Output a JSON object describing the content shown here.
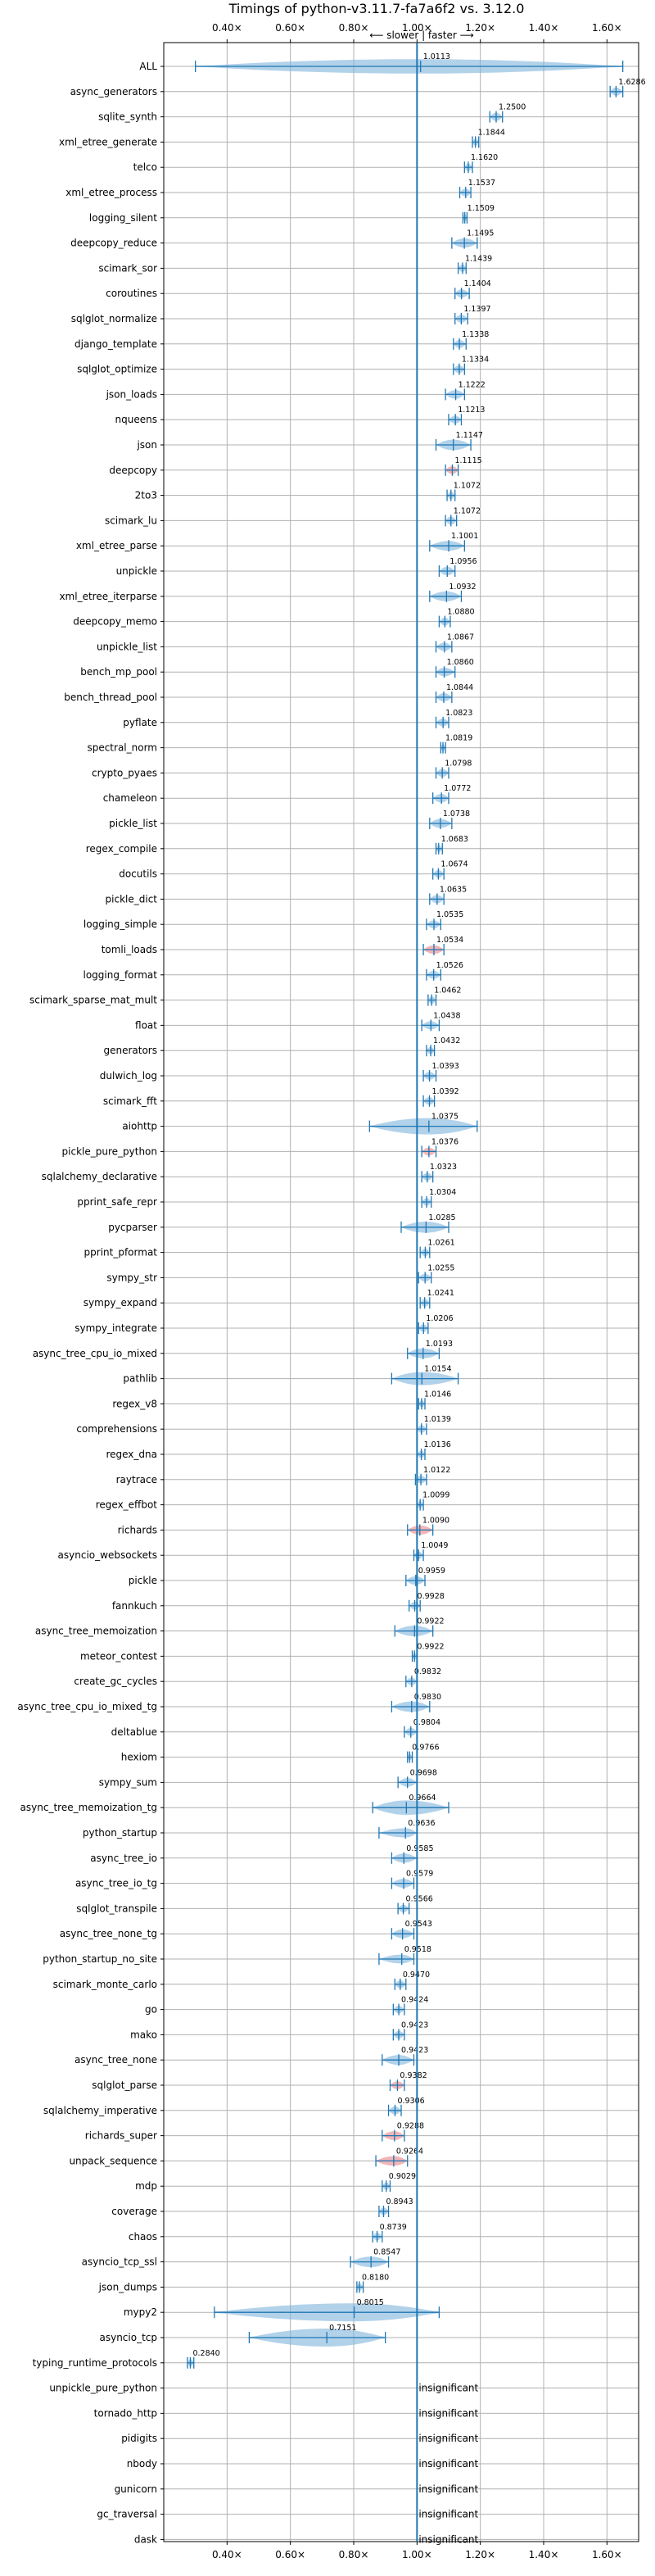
{
  "chart_data": {
    "type": "violin",
    "title": "Timings of python-v3.11.7-fa7a6f2 vs. 3.12.0",
    "direction_label": "⟵ slower | faster ⟶",
    "xlim": [
      0.2,
      1.7
    ],
    "xticks": [
      0.4,
      0.6,
      0.8,
      1.0,
      1.2,
      1.4,
      1.6
    ],
    "xtick_labels": [
      "0.40×",
      "0.60×",
      "0.80×",
      "1.00×",
      "1.20×",
      "1.40×",
      "1.60×"
    ],
    "grid": true,
    "reference_line": 1.0,
    "insignificant_label": "insignificant",
    "benchmarks": [
      {
        "name": "ALL",
        "value": 1.0113,
        "label": "1.0113",
        "lo": 0.3,
        "hi": 1.65,
        "spread": 0.12,
        "flagged": false
      },
      {
        "name": "async_generators",
        "value": 1.6286,
        "label": "1.6286",
        "lo": 1.61,
        "hi": 1.65,
        "spread": 0.025,
        "flagged": false
      },
      {
        "name": "sqlite_synth",
        "value": 1.25,
        "label": "1.2500",
        "lo": 1.23,
        "hi": 1.27,
        "spread": 0.025,
        "flagged": false
      },
      {
        "name": "xml_etree_generate",
        "value": 1.1844,
        "label": "1.1844",
        "lo": 1.175,
        "hi": 1.195,
        "spread": 0.012,
        "flagged": false
      },
      {
        "name": "telco",
        "value": 1.162,
        "label": "1.1620",
        "lo": 1.15,
        "hi": 1.175,
        "spread": 0.015,
        "flagged": false
      },
      {
        "name": "xml_etree_process",
        "value": 1.1537,
        "label": "1.1537",
        "lo": 1.135,
        "hi": 1.17,
        "spread": 0.02,
        "flagged": false
      },
      {
        "name": "logging_silent",
        "value": 1.1509,
        "label": "1.1509",
        "lo": 1.145,
        "hi": 1.158,
        "spread": 0.008,
        "flagged": false
      },
      {
        "name": "deepcopy_reduce",
        "value": 1.1495,
        "label": "1.1495",
        "lo": 1.11,
        "hi": 1.19,
        "spread": 0.04,
        "flagged": false
      },
      {
        "name": "scimark_sor",
        "value": 1.1439,
        "label": "1.1439",
        "lo": 1.13,
        "hi": 1.155,
        "spread": 0.015,
        "flagged": false
      },
      {
        "name": "coroutines",
        "value": 1.1404,
        "label": "1.1404",
        "lo": 1.12,
        "hi": 1.165,
        "spread": 0.025,
        "flagged": false
      },
      {
        "name": "sqlglot_normalize",
        "value": 1.1397,
        "label": "1.1397",
        "lo": 1.12,
        "hi": 1.16,
        "spread": 0.02,
        "flagged": false
      },
      {
        "name": "django_template",
        "value": 1.1338,
        "label": "1.1338",
        "lo": 1.115,
        "hi": 1.155,
        "spread": 0.02,
        "flagged": false
      },
      {
        "name": "sqlglot_optimize",
        "value": 1.1334,
        "label": "1.1334",
        "lo": 1.115,
        "hi": 1.15,
        "spread": 0.02,
        "flagged": false
      },
      {
        "name": "json_loads",
        "value": 1.1222,
        "label": "1.1222",
        "lo": 1.09,
        "hi": 1.15,
        "spread": 0.03,
        "flagged": false
      },
      {
        "name": "nqueens",
        "value": 1.1213,
        "label": "1.1213",
        "lo": 1.1,
        "hi": 1.14,
        "spread": 0.02,
        "flagged": false
      },
      {
        "name": "json",
        "value": 1.1147,
        "label": "1.1147",
        "lo": 1.06,
        "hi": 1.17,
        "spread": 0.06,
        "flagged": false
      },
      {
        "name": "deepcopy",
        "value": 1.1115,
        "label": "1.1115",
        "lo": 1.09,
        "hi": 1.13,
        "spread": 0.02,
        "flagged": true
      },
      {
        "name": "2to3",
        "value": 1.1072,
        "label": "1.1072",
        "lo": 1.095,
        "hi": 1.12,
        "spread": 0.015,
        "flagged": false
      },
      {
        "name": "scimark_lu",
        "value": 1.1072,
        "label": "1.1072",
        "lo": 1.09,
        "hi": 1.125,
        "spread": 0.02,
        "flagged": false
      },
      {
        "name": "xml_etree_parse",
        "value": 1.1001,
        "label": "1.1001",
        "lo": 1.04,
        "hi": 1.15,
        "spread": 0.05,
        "flagged": false
      },
      {
        "name": "unpickle",
        "value": 1.0956,
        "label": "1.0956",
        "lo": 1.07,
        "hi": 1.12,
        "spread": 0.03,
        "flagged": false
      },
      {
        "name": "xml_etree_iterparse",
        "value": 1.0932,
        "label": "1.0932",
        "lo": 1.04,
        "hi": 1.14,
        "spread": 0.05,
        "flagged": false
      },
      {
        "name": "deepcopy_memo",
        "value": 1.088,
        "label": "1.0880",
        "lo": 1.07,
        "hi": 1.105,
        "spread": 0.02,
        "flagged": false
      },
      {
        "name": "unpickle_list",
        "value": 1.0867,
        "label": "1.0867",
        "lo": 1.06,
        "hi": 1.11,
        "spread": 0.025,
        "flagged": false
      },
      {
        "name": "bench_mp_pool",
        "value": 1.086,
        "label": "1.0860",
        "lo": 1.06,
        "hi": 1.12,
        "spread": 0.03,
        "flagged": false
      },
      {
        "name": "bench_thread_pool",
        "value": 1.0844,
        "label": "1.0844",
        "lo": 1.06,
        "hi": 1.11,
        "spread": 0.025,
        "flagged": false
      },
      {
        "name": "pyflate",
        "value": 1.0823,
        "label": "1.0823",
        "lo": 1.06,
        "hi": 1.1,
        "spread": 0.02,
        "flagged": false
      },
      {
        "name": "spectral_norm",
        "value": 1.0819,
        "label": "1.0819",
        "lo": 1.075,
        "hi": 1.09,
        "spread": 0.008,
        "flagged": false
      },
      {
        "name": "crypto_pyaes",
        "value": 1.0798,
        "label": "1.0798",
        "lo": 1.06,
        "hi": 1.1,
        "spread": 0.02,
        "flagged": false
      },
      {
        "name": "chameleon",
        "value": 1.0772,
        "label": "1.0772",
        "lo": 1.05,
        "hi": 1.1,
        "spread": 0.03,
        "flagged": false
      },
      {
        "name": "pickle_list",
        "value": 1.0738,
        "label": "1.0738",
        "lo": 1.04,
        "hi": 1.11,
        "spread": 0.035,
        "flagged": false
      },
      {
        "name": "regex_compile",
        "value": 1.0683,
        "label": "1.0683",
        "lo": 1.06,
        "hi": 1.08,
        "spread": 0.01,
        "flagged": false
      },
      {
        "name": "docutils",
        "value": 1.0674,
        "label": "1.0674",
        "lo": 1.05,
        "hi": 1.085,
        "spread": 0.015,
        "flagged": false
      },
      {
        "name": "pickle_dict",
        "value": 1.0635,
        "label": "1.0635",
        "lo": 1.04,
        "hi": 1.085,
        "spread": 0.025,
        "flagged": false
      },
      {
        "name": "logging_simple",
        "value": 1.0535,
        "label": "1.0535",
        "lo": 1.03,
        "hi": 1.075,
        "spread": 0.02,
        "flagged": false
      },
      {
        "name": "tomli_loads",
        "value": 1.0534,
        "label": "1.0534",
        "lo": 1.02,
        "hi": 1.085,
        "spread": 0.03,
        "flagged": true
      },
      {
        "name": "logging_format",
        "value": 1.0526,
        "label": "1.0526",
        "lo": 1.03,
        "hi": 1.075,
        "spread": 0.02,
        "flagged": false
      },
      {
        "name": "scimark_sparse_mat_mult",
        "value": 1.0462,
        "label": "1.0462",
        "lo": 1.035,
        "hi": 1.06,
        "spread": 0.012,
        "flagged": false
      },
      {
        "name": "float",
        "value": 1.0438,
        "label": "1.0438",
        "lo": 1.015,
        "hi": 1.07,
        "spread": 0.025,
        "flagged": false
      },
      {
        "name": "generators",
        "value": 1.0432,
        "label": "1.0432",
        "lo": 1.03,
        "hi": 1.055,
        "spread": 0.012,
        "flagged": false
      },
      {
        "name": "dulwich_log",
        "value": 1.0393,
        "label": "1.0393",
        "lo": 1.02,
        "hi": 1.06,
        "spread": 0.02,
        "flagged": false
      },
      {
        "name": "scimark_fft",
        "value": 1.0392,
        "label": "1.0392",
        "lo": 1.02,
        "hi": 1.055,
        "spread": 0.015,
        "flagged": false
      },
      {
        "name": "aiohttp",
        "value": 1.0375,
        "label": "1.0375",
        "lo": 0.85,
        "hi": 1.19,
        "spread": 0.15,
        "flagged": false
      },
      {
        "name": "pickle_pure_python",
        "value": 1.0376,
        "label": "1.0376",
        "lo": 1.015,
        "hi": 1.06,
        "spread": 0.02,
        "flagged": true
      },
      {
        "name": "sqlalchemy_declarative",
        "value": 1.0323,
        "label": "1.0323",
        "lo": 1.015,
        "hi": 1.05,
        "spread": 0.015,
        "flagged": false
      },
      {
        "name": "pprint_safe_repr",
        "value": 1.0304,
        "label": "1.0304",
        "lo": 1.015,
        "hi": 1.045,
        "spread": 0.015,
        "flagged": false
      },
      {
        "name": "pycparser",
        "value": 1.0285,
        "label": "1.0285",
        "lo": 0.95,
        "hi": 1.1,
        "spread": 0.07,
        "flagged": false
      },
      {
        "name": "pprint_pformat",
        "value": 1.0261,
        "label": "1.0261",
        "lo": 1.01,
        "hi": 1.04,
        "spread": 0.015,
        "flagged": false
      },
      {
        "name": "sympy_str",
        "value": 1.0255,
        "label": "1.0255",
        "lo": 1.005,
        "hi": 1.045,
        "spread": 0.02,
        "flagged": false
      },
      {
        "name": "sympy_expand",
        "value": 1.0241,
        "label": "1.0241",
        "lo": 1.01,
        "hi": 1.04,
        "spread": 0.015,
        "flagged": false
      },
      {
        "name": "sympy_integrate",
        "value": 1.0206,
        "label": "1.0206",
        "lo": 1.005,
        "hi": 1.035,
        "spread": 0.015,
        "flagged": false
      },
      {
        "name": "async_tree_cpu_io_mixed",
        "value": 1.0193,
        "label": "1.0193",
        "lo": 0.97,
        "hi": 1.07,
        "spread": 0.05,
        "flagged": false
      },
      {
        "name": "pathlib",
        "value": 1.0154,
        "label": "1.0154",
        "lo": 0.92,
        "hi": 1.13,
        "spread": 0.1,
        "flagged": false
      },
      {
        "name": "regex_v8",
        "value": 1.0146,
        "label": "1.0146",
        "lo": 1.005,
        "hi": 1.025,
        "spread": 0.01,
        "flagged": false
      },
      {
        "name": "comprehensions",
        "value": 1.0139,
        "label": "1.0139",
        "lo": 1.0,
        "hi": 1.03,
        "spread": 0.015,
        "flagged": false
      },
      {
        "name": "regex_dna",
        "value": 1.0136,
        "label": "1.0136",
        "lo": 1.0,
        "hi": 1.025,
        "spread": 0.012,
        "flagged": false
      },
      {
        "name": "raytrace",
        "value": 1.0122,
        "label": "1.0122",
        "lo": 0.995,
        "hi": 1.03,
        "spread": 0.015,
        "flagged": false
      },
      {
        "name": "regex_effbot",
        "value": 1.0099,
        "label": "1.0099",
        "lo": 1.0,
        "hi": 1.02,
        "spread": 0.01,
        "flagged": false
      },
      {
        "name": "richards",
        "value": 1.009,
        "label": "1.0090",
        "lo": 0.97,
        "hi": 1.05,
        "spread": 0.04,
        "flagged": true
      },
      {
        "name": "asyncio_websockets",
        "value": 1.0049,
        "label": "1.0049",
        "lo": 0.99,
        "hi": 1.02,
        "spread": 0.015,
        "flagged": false
      },
      {
        "name": "pickle",
        "value": 0.9959,
        "label": "0.9959",
        "lo": 0.965,
        "hi": 1.025,
        "spread": 0.03,
        "flagged": false
      },
      {
        "name": "fannkuch",
        "value": 0.9928,
        "label": "0.9928",
        "lo": 0.975,
        "hi": 1.01,
        "spread": 0.015,
        "flagged": false
      },
      {
        "name": "async_tree_memoization",
        "value": 0.9922,
        "label": "0.9922",
        "lo": 0.93,
        "hi": 1.05,
        "spread": 0.06,
        "flagged": false
      },
      {
        "name": "meteor_contest",
        "value": 0.9922,
        "label": "0.9922",
        "lo": 0.985,
        "hi": 1.0,
        "spread": 0.008,
        "flagged": false
      },
      {
        "name": "create_gc_cycles",
        "value": 0.9832,
        "label": "0.9832",
        "lo": 0.965,
        "hi": 1.0,
        "spread": 0.015,
        "flagged": false
      },
      {
        "name": "async_tree_cpu_io_mixed_tg",
        "value": 0.983,
        "label": "0.9830",
        "lo": 0.92,
        "hi": 1.04,
        "spread": 0.06,
        "flagged": false
      },
      {
        "name": "deltablue",
        "value": 0.9804,
        "label": "0.9804",
        "lo": 0.96,
        "hi": 1.0,
        "spread": 0.02,
        "flagged": false
      },
      {
        "name": "hexiom",
        "value": 0.9766,
        "label": "0.9766",
        "lo": 0.97,
        "hi": 0.985,
        "spread": 0.008,
        "flagged": false
      },
      {
        "name": "sympy_sum",
        "value": 0.9698,
        "label": "0.9698",
        "lo": 0.94,
        "hi": 1.0,
        "spread": 0.03,
        "flagged": false
      },
      {
        "name": "async_tree_memoization_tg",
        "value": 0.9664,
        "label": "0.9664",
        "lo": 0.86,
        "hi": 1.1,
        "spread": 0.12,
        "flagged": false
      },
      {
        "name": "python_startup",
        "value": 0.9636,
        "label": "0.9636",
        "lo": 0.88,
        "hi": 1.0,
        "spread": 0.04,
        "flagged": false
      },
      {
        "name": "async_tree_io",
        "value": 0.9585,
        "label": "0.9585",
        "lo": 0.92,
        "hi": 1.0,
        "spread": 0.04,
        "flagged": false
      },
      {
        "name": "async_tree_io_tg",
        "value": 0.9579,
        "label": "0.9579",
        "lo": 0.92,
        "hi": 0.99,
        "spread": 0.035,
        "flagged": false
      },
      {
        "name": "sqlglot_transpile",
        "value": 0.9566,
        "label": "0.9566",
        "lo": 0.94,
        "hi": 0.975,
        "spread": 0.015,
        "flagged": false
      },
      {
        "name": "async_tree_none_tg",
        "value": 0.9543,
        "label": "0.9543",
        "lo": 0.92,
        "hi": 0.99,
        "spread": 0.035,
        "flagged": false
      },
      {
        "name": "python_startup_no_site",
        "value": 0.9518,
        "label": "0.9518",
        "lo": 0.88,
        "hi": 0.99,
        "spread": 0.035,
        "flagged": false
      },
      {
        "name": "scimark_monte_carlo",
        "value": 0.947,
        "label": "0.9470",
        "lo": 0.93,
        "hi": 0.965,
        "spread": 0.015,
        "flagged": false
      },
      {
        "name": "go",
        "value": 0.9424,
        "label": "0.9424",
        "lo": 0.925,
        "hi": 0.96,
        "spread": 0.015,
        "flagged": false
      },
      {
        "name": "mako",
        "value": 0.9423,
        "label": "0.9423",
        "lo": 0.925,
        "hi": 0.96,
        "spread": 0.015,
        "flagged": false
      },
      {
        "name": "async_tree_none",
        "value": 0.9423,
        "label": "0.9423",
        "lo": 0.89,
        "hi": 0.99,
        "spread": 0.05,
        "flagged": false
      },
      {
        "name": "sqlglot_parse",
        "value": 0.9382,
        "label": "0.9382",
        "lo": 0.915,
        "hi": 0.96,
        "spread": 0.02,
        "flagged": true
      },
      {
        "name": "sqlalchemy_imperative",
        "value": 0.9306,
        "label": "0.9306",
        "lo": 0.91,
        "hi": 0.95,
        "spread": 0.02,
        "flagged": false
      },
      {
        "name": "richards_super",
        "value": 0.9288,
        "label": "0.9288",
        "lo": 0.89,
        "hi": 0.96,
        "spread": 0.035,
        "flagged": true
      },
      {
        "name": "unpack_sequence",
        "value": 0.9264,
        "label": "0.9264",
        "lo": 0.87,
        "hi": 0.97,
        "spread": 0.045,
        "flagged": true
      },
      {
        "name": "mdp",
        "value": 0.9029,
        "label": "0.9029",
        "lo": 0.89,
        "hi": 0.915,
        "spread": 0.012,
        "flagged": false
      },
      {
        "name": "coverage",
        "value": 0.8943,
        "label": "0.8943",
        "lo": 0.88,
        "hi": 0.91,
        "spread": 0.015,
        "flagged": false
      },
      {
        "name": "chaos",
        "value": 0.8739,
        "label": "0.8739",
        "lo": 0.86,
        "hi": 0.89,
        "spread": 0.015,
        "flagged": false
      },
      {
        "name": "asyncio_tcp_ssl",
        "value": 0.8547,
        "label": "0.8547",
        "lo": 0.79,
        "hi": 0.91,
        "spread": 0.06,
        "flagged": false
      },
      {
        "name": "json_dumps",
        "value": 0.818,
        "label": "0.8180",
        "lo": 0.81,
        "hi": 0.83,
        "spread": 0.012,
        "flagged": false
      },
      {
        "name": "mypy2",
        "value": 0.8015,
        "label": "0.8015",
        "lo": 0.36,
        "hi": 1.07,
        "spread": 0.3,
        "flagged": false
      },
      {
        "name": "asyncio_tcp",
        "value": 0.7151,
        "label": "0.7151",
        "lo": 0.47,
        "hi": 0.9,
        "spread": 0.2,
        "flagged": false
      },
      {
        "name": "typing_runtime_protocols",
        "value": 0.284,
        "label": "0.2840",
        "lo": 0.275,
        "hi": 0.295,
        "spread": 0.012,
        "flagged": false
      },
      {
        "name": "unpickle_pure_python",
        "insignificant": true
      },
      {
        "name": "tornado_http",
        "insignificant": true
      },
      {
        "name": "pidigits",
        "insignificant": true
      },
      {
        "name": "nbody",
        "insignificant": true
      },
      {
        "name": "gunicorn",
        "insignificant": true
      },
      {
        "name": "gc_traversal",
        "insignificant": true
      },
      {
        "name": "dask",
        "insignificant": true
      }
    ],
    "colors": {
      "violin": "#7fb4dc",
      "line": "#1f77b4",
      "flag": "#e8797b",
      "grid": "#b0b0b0",
      "axis": "#000000"
    }
  }
}
